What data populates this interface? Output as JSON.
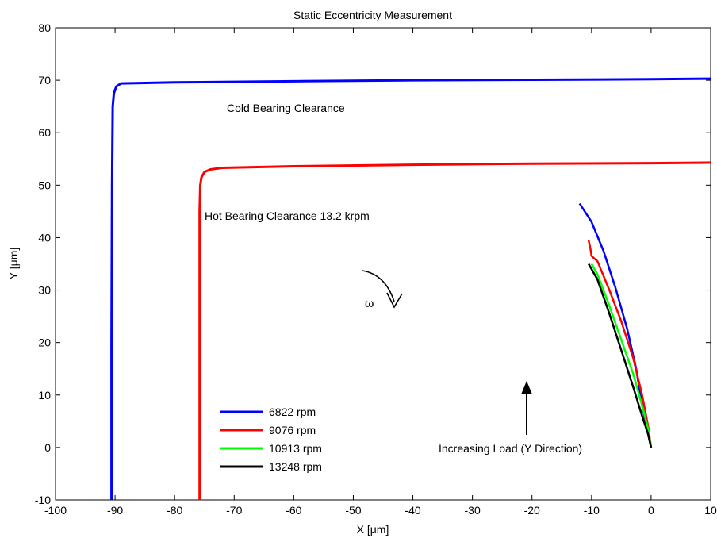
{
  "chart_data": {
    "type": "line",
    "title": "Static Eccentricity Measurement",
    "xlabel": "X [μm]",
    "ylabel": "Y [μm]",
    "xlim": [
      -100,
      10
    ],
    "ylim": [
      -10,
      80
    ],
    "xticks": [
      "-100",
      "-90",
      "-80",
      "-70",
      "-60",
      "-50",
      "-40",
      "-30",
      "-20",
      "-10",
      "0",
      "10"
    ],
    "yticks": [
      "-10",
      "0",
      "10",
      "20",
      "30",
      "40",
      "50",
      "60",
      "70",
      "80"
    ],
    "grid": false,
    "legend_position": "bottom-left",
    "colors": {
      "6822": "#0000ff",
      "9076": "#ff0000",
      "10913": "#00ff00",
      "13248": "#000000"
    },
    "clearance_curves": [
      {
        "label": "Cold Bearing Clearance",
        "color": "#0000ff",
        "x": [
          -90.6,
          -90.6,
          -90.5,
          -90.4,
          -90.2,
          -89.8,
          -89.0,
          -80,
          -60,
          -40,
          -20,
          0,
          10
        ],
        "y": [
          -10,
          20,
          50,
          65,
          67.5,
          68.8,
          69.4,
          69.6,
          69.8,
          70.0,
          70.1,
          70.2,
          70.3
        ]
      },
      {
        "label": "Hot Bearing Clearance 13.2 krpm",
        "color": "#ff0000",
        "x": [
          -75.8,
          -75.8,
          -75.8,
          -75.7,
          -75.5,
          -75.0,
          -74.0,
          -72,
          -60,
          -40,
          -20,
          0,
          10
        ],
        "y": [
          -10,
          20,
          45,
          50,
          51.5,
          52.5,
          53.0,
          53.3,
          53.6,
          53.9,
          54.1,
          54.2,
          54.3
        ]
      }
    ],
    "series": [
      {
        "name": "6822 rpm",
        "x": [
          -12,
          -10,
          -8,
          -6,
          -4,
          -2.5,
          -1.5,
          -0.5,
          0
        ],
        "y": [
          46.5,
          43,
          37.5,
          30.5,
          22.5,
          15,
          8,
          2.5,
          0
        ]
      },
      {
        "name": "9076 rpm",
        "x": [
          -10.5,
          -10.2,
          -10,
          -9,
          -7,
          -5,
          -3,
          -1.5,
          -0.5,
          0
        ],
        "y": [
          39.5,
          38,
          36.5,
          35.5,
          30,
          24,
          17,
          10,
          4,
          0
        ]
      },
      {
        "name": "10913 rpm",
        "x": [
          -10,
          -9,
          -7,
          -5,
          -3,
          -1.5,
          -0.5,
          0
        ],
        "y": [
          35,
          33,
          27,
          20.5,
          14,
          8,
          3.5,
          0
        ]
      },
      {
        "name": "13248 rpm",
        "x": [
          -10.5,
          -9,
          -7,
          -5,
          -3,
          -1.5,
          -0.5,
          0
        ],
        "y": [
          35,
          32,
          25.5,
          18.5,
          11.5,
          6,
          2.5,
          0
        ]
      }
    ],
    "annotations": {
      "cold": "Cold Bearing Clearance",
      "hot": "Hot Bearing Clearance 13.2 krpm",
      "omega": "ω",
      "load": "Increasing Load (Y Direction)"
    },
    "legend": [
      "6822 rpm",
      "9076 rpm",
      "10913 rpm",
      "13248 rpm"
    ]
  }
}
